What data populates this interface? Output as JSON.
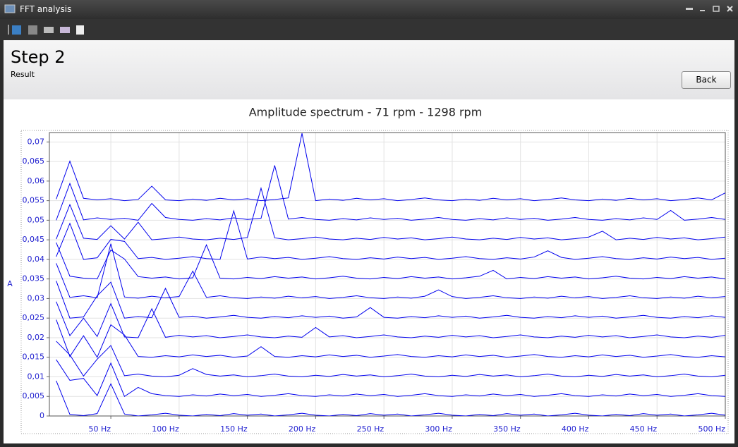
{
  "window": {
    "title": "FFT analysis"
  },
  "header": {
    "step": "Step 2",
    "subtitle": "Result",
    "button": "Back"
  },
  "chart_data": {
    "type": "line",
    "title": "Amplitude spectrum - 71 rpm - 1298 rpm",
    "y_label": "A",
    "x": [
      10,
      20,
      30,
      40,
      50,
      60,
      70,
      80,
      90,
      100,
      110,
      120,
      130,
      140,
      150,
      160,
      170,
      180,
      190,
      200,
      210,
      220,
      230,
      240,
      250,
      260,
      270,
      280,
      290,
      300,
      310,
      320,
      330,
      340,
      350,
      360,
      370,
      380,
      390,
      400,
      410,
      420,
      430,
      440,
      450,
      460,
      470,
      480,
      490,
      500
    ],
    "xlim": [
      5,
      500
    ],
    "xticks": [
      {
        "value": 50,
        "label": "50 Hz"
      },
      {
        "value": 100,
        "label": "100 Hz"
      },
      {
        "value": 150,
        "label": "150 Hz"
      },
      {
        "value": 200,
        "label": "200 Hz"
      },
      {
        "value": 250,
        "label": "250 Hz"
      },
      {
        "value": 300,
        "label": "300 Hz"
      },
      {
        "value": 350,
        "label": "350 Hz"
      },
      {
        "value": 400,
        "label": "400 Hz"
      },
      {
        "value": 450,
        "label": "450 Hz"
      },
      {
        "value": 500,
        "label": "500 Hz"
      }
    ],
    "ylim": [
      0,
      0.0724
    ],
    "yticks": [
      0,
      {
        "value": 0.005,
        "label": "0,005"
      },
      {
        "value": 0.01,
        "label": "0,01"
      },
      {
        "value": 0.015,
        "label": "0,015"
      },
      {
        "value": 0.02,
        "label": "0,02"
      },
      {
        "value": 0.025,
        "label": "0,025"
      },
      {
        "value": 0.03,
        "label": "0,03"
      },
      {
        "value": 0.035,
        "label": "0,035"
      },
      {
        "value": 0.04,
        "label": "0,04"
      },
      {
        "value": 0.045,
        "label": "0,045"
      },
      {
        "value": 0.05,
        "label": "0,05"
      },
      {
        "value": 0.055,
        "label": "0,055"
      },
      {
        "value": 0.06,
        "label": "0,06"
      },
      {
        "value": 0.065,
        "label": "0,065"
      },
      {
        "value": 0.07,
        "label": "0,07"
      }
    ],
    "grid": true,
    "series": [
      {
        "color": "#0000ee",
        "values": [
          0.009,
          0.0004,
          0.0001,
          0.0006,
          0.0082,
          0.0005,
          0,
          0.0003,
          0.0007,
          0.0002,
          0,
          0.0004,
          0.0001,
          0.0006,
          0.0002,
          0.0005,
          0,
          0.0003,
          0.0007,
          0.0002,
          0,
          0.0004,
          0.0001,
          0.0006,
          0.0002,
          0.0005,
          0,
          0.0003,
          0.0007,
          0.0002,
          0,
          0.0004,
          0.0001,
          0.0006,
          0.0002,
          0.0005,
          0,
          0.0003,
          0.0007,
          0.0002,
          0,
          0.0004,
          0.0001,
          0.0006,
          0.0002,
          0.0005,
          0,
          0.0003,
          0.0007,
          0.0002
        ]
      },
      {
        "color": "#0000ee",
        "values": [
          0.0144,
          0.0091,
          0.0096,
          0.0052,
          0.0135,
          0.005,
          0.0073,
          0.0057,
          0.0052,
          0.005,
          0.0054,
          0.0051,
          0.0056,
          0.0052,
          0.0055,
          0.005,
          0.0053,
          0.0057,
          0.0052,
          0.005,
          0.0054,
          0.0051,
          0.0056,
          0.0052,
          0.0055,
          0.005,
          0.0053,
          0.0057,
          0.0052,
          0.005,
          0.0054,
          0.0051,
          0.0056,
          0.0052,
          0.0055,
          0.005,
          0.0053,
          0.0057,
          0.0052,
          0.005,
          0.0054,
          0.0051,
          0.0056,
          0.0052,
          0.0055,
          0.005,
          0.0053,
          0.0057,
          0.0052,
          0.005
        ]
      },
      {
        "color": "#0000ee",
        "values": [
          0.0191,
          0.0156,
          0.0102,
          0.0145,
          0.018,
          0.0103,
          0.0107,
          0.0102,
          0.01,
          0.0104,
          0.0121,
          0.0106,
          0.0102,
          0.0105,
          0.01,
          0.0103,
          0.0107,
          0.0102,
          0.01,
          0.0104,
          0.0101,
          0.0106,
          0.0102,
          0.0105,
          0.01,
          0.0103,
          0.0107,
          0.0102,
          0.01,
          0.0104,
          0.0101,
          0.0106,
          0.0102,
          0.0105,
          0.01,
          0.0103,
          0.0107,
          0.0102,
          0.01,
          0.0104,
          0.0101,
          0.0106,
          0.0102,
          0.0105,
          0.01,
          0.0103,
          0.0107,
          0.0102,
          0.01,
          0.0104
        ]
      },
      {
        "color": "#0000ee",
        "values": [
          0.0246,
          0.0152,
          0.0205,
          0.015,
          0.0233,
          0.0207,
          0.0152,
          0.015,
          0.0154,
          0.0151,
          0.0156,
          0.0152,
          0.0155,
          0.015,
          0.0153,
          0.0177,
          0.0152,
          0.015,
          0.0154,
          0.0151,
          0.0156,
          0.0152,
          0.0155,
          0.015,
          0.0153,
          0.0157,
          0.0152,
          0.015,
          0.0154,
          0.0151,
          0.0156,
          0.0152,
          0.0155,
          0.015,
          0.0153,
          0.0157,
          0.0152,
          0.015,
          0.0154,
          0.0151,
          0.0156,
          0.0152,
          0.0155,
          0.015,
          0.0153,
          0.0157,
          0.0152,
          0.015,
          0.0154,
          0.0151
        ]
      },
      {
        "color": "#0000ee",
        "values": [
          0.0292,
          0.0205,
          0.025,
          0.0203,
          0.0287,
          0.0202,
          0.02,
          0.0274,
          0.0201,
          0.0206,
          0.0202,
          0.0205,
          0.02,
          0.0203,
          0.0207,
          0.0202,
          0.02,
          0.0204,
          0.0201,
          0.0226,
          0.0202,
          0.0205,
          0.02,
          0.0203,
          0.0207,
          0.0202,
          0.02,
          0.0204,
          0.0201,
          0.0206,
          0.0202,
          0.0205,
          0.02,
          0.0203,
          0.0207,
          0.0202,
          0.02,
          0.0204,
          0.0201,
          0.0206,
          0.0202,
          0.0205,
          0.02,
          0.0203,
          0.0207,
          0.0202,
          0.02,
          0.0204,
          0.0201,
          0.0206
        ]
      },
      {
        "color": "#0000ee",
        "values": [
          0.0345,
          0.025,
          0.0253,
          0.0307,
          0.0342,
          0.025,
          0.0254,
          0.0251,
          0.0326,
          0.0252,
          0.0255,
          0.025,
          0.0253,
          0.0257,
          0.0252,
          0.025,
          0.0254,
          0.0251,
          0.0256,
          0.0252,
          0.0255,
          0.025,
          0.0253,
          0.0277,
          0.0252,
          0.025,
          0.0254,
          0.0251,
          0.0256,
          0.0252,
          0.0255,
          0.025,
          0.0253,
          0.0257,
          0.0252,
          0.025,
          0.0254,
          0.0251,
          0.0256,
          0.0252,
          0.0255,
          0.025,
          0.0253,
          0.0257,
          0.0252,
          0.025,
          0.0254,
          0.0251,
          0.0256,
          0.0252
        ]
      },
      {
        "color": "#0000ee",
        "values": [
          0.039,
          0.0303,
          0.0307,
          0.0302,
          0.044,
          0.0304,
          0.0301,
          0.0306,
          0.0302,
          0.0305,
          0.037,
          0.0303,
          0.0307,
          0.0302,
          0.03,
          0.0304,
          0.0301,
          0.0306,
          0.0302,
          0.0305,
          0.03,
          0.0303,
          0.0307,
          0.0302,
          0.03,
          0.0304,
          0.0301,
          0.0306,
          0.0322,
          0.0305,
          0.03,
          0.0303,
          0.0307,
          0.0302,
          0.03,
          0.0304,
          0.0301,
          0.0306,
          0.0302,
          0.0305,
          0.03,
          0.0303,
          0.0307,
          0.0302,
          0.03,
          0.0304,
          0.0301,
          0.0306,
          0.0302,
          0.0305
        ]
      },
      {
        "color": "#0000ee",
        "values": [
          0.0443,
          0.0357,
          0.0352,
          0.035,
          0.0424,
          0.0401,
          0.0356,
          0.0352,
          0.0355,
          0.035,
          0.0353,
          0.0437,
          0.0352,
          0.035,
          0.0354,
          0.0351,
          0.0356,
          0.0352,
          0.0355,
          0.035,
          0.0353,
          0.0357,
          0.0352,
          0.035,
          0.0354,
          0.0351,
          0.0356,
          0.0352,
          0.0355,
          0.035,
          0.0353,
          0.0357,
          0.0372,
          0.035,
          0.0354,
          0.0351,
          0.0356,
          0.0352,
          0.0355,
          0.035,
          0.0353,
          0.0357,
          0.0352,
          0.035,
          0.0354,
          0.0351,
          0.0356,
          0.0352,
          0.0355,
          0.035
        ]
      },
      {
        "color": "#0000ee",
        "values": [
          0.0407,
          0.0492,
          0.04,
          0.0404,
          0.0451,
          0.0446,
          0.0402,
          0.0405,
          0.04,
          0.0403,
          0.0407,
          0.0402,
          0.04,
          0.0524,
          0.0401,
          0.0406,
          0.0402,
          0.0405,
          0.04,
          0.0403,
          0.0407,
          0.0402,
          0.04,
          0.0404,
          0.0401,
          0.0406,
          0.0402,
          0.0405,
          0.04,
          0.0403,
          0.0407,
          0.0402,
          0.04,
          0.0404,
          0.0401,
          0.0406,
          0.0422,
          0.0405,
          0.04,
          0.0403,
          0.0407,
          0.0402,
          0.04,
          0.0404,
          0.0401,
          0.0406,
          0.0402,
          0.0405,
          0.04,
          0.0403
        ]
      },
      {
        "color": "#0000ee",
        "values": [
          0.0452,
          0.054,
          0.0454,
          0.0451,
          0.0486,
          0.0452,
          0.0495,
          0.045,
          0.0453,
          0.0457,
          0.0452,
          0.045,
          0.0454,
          0.0451,
          0.0456,
          0.0582,
          0.0455,
          0.045,
          0.0453,
          0.0457,
          0.0452,
          0.045,
          0.0454,
          0.0451,
          0.0456,
          0.0452,
          0.0455,
          0.045,
          0.0453,
          0.0457,
          0.0452,
          0.045,
          0.0454,
          0.0451,
          0.0456,
          0.0452,
          0.0455,
          0.045,
          0.0453,
          0.0457,
          0.0472,
          0.045,
          0.0454,
          0.0451,
          0.0456,
          0.0452,
          0.0455,
          0.045,
          0.0453,
          0.0457
        ]
      },
      {
        "color": "#0000ee",
        "values": [
          0.05,
          0.0594,
          0.0501,
          0.0506,
          0.0502,
          0.0505,
          0.05,
          0.0543,
          0.0507,
          0.0502,
          0.05,
          0.0504,
          0.0501,
          0.0506,
          0.0502,
          0.0505,
          0.064,
          0.0503,
          0.0507,
          0.0502,
          0.05,
          0.0504,
          0.0501,
          0.0506,
          0.0502,
          0.0505,
          0.05,
          0.0503,
          0.0507,
          0.0502,
          0.05,
          0.0504,
          0.0501,
          0.0506,
          0.0502,
          0.0505,
          0.05,
          0.0503,
          0.0507,
          0.0502,
          0.05,
          0.0504,
          0.0501,
          0.0506,
          0.0502,
          0.0525,
          0.05,
          0.0503,
          0.0507,
          0.0502
        ]
      },
      {
        "color": "#0000ee",
        "values": [
          0.0554,
          0.0651,
          0.0556,
          0.0552,
          0.0555,
          0.055,
          0.0553,
          0.0587,
          0.0552,
          0.055,
          0.0554,
          0.0551,
          0.0556,
          0.0552,
          0.0555,
          0.055,
          0.0553,
          0.0557,
          0.0722,
          0.055,
          0.0554,
          0.0551,
          0.0556,
          0.0552,
          0.0555,
          0.055,
          0.0553,
          0.0557,
          0.0552,
          0.055,
          0.0554,
          0.0551,
          0.0556,
          0.0552,
          0.0555,
          0.055,
          0.0553,
          0.0557,
          0.0552,
          0.055,
          0.0554,
          0.0551,
          0.0556,
          0.0552,
          0.0555,
          0.055,
          0.0553,
          0.0557,
          0.0552,
          0.057
        ]
      }
    ]
  }
}
